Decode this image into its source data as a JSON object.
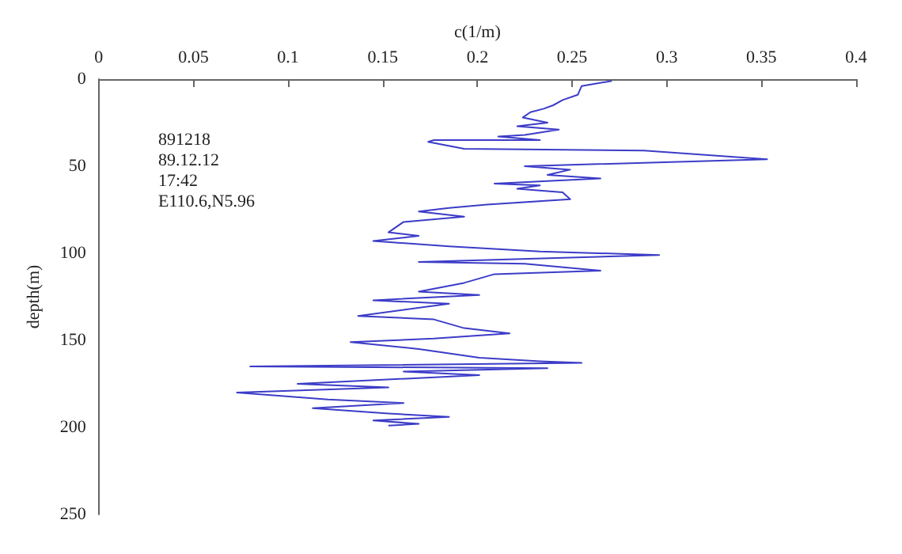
{
  "chart_data": {
    "type": "line",
    "xlabel": "c(1/m)",
    "ylabel": "depth(m)",
    "xlim": [
      0,
      0.4
    ],
    "xticks": [
      0,
      0.05,
      0.1,
      0.15,
      0.2,
      0.25,
      0.3,
      0.35,
      0.4
    ],
    "ylim": [
      250,
      0
    ],
    "yticks": [
      0,
      50,
      100,
      150,
      200,
      250
    ],
    "x": [
      0.271,
      0.255,
      0.253,
      0.245,
      0.24,
      0.235,
      0.228,
      0.224,
      0.237,
      0.221,
      0.243,
      0.225,
      0.211,
      0.233,
      0.177,
      0.174,
      0.193,
      0.288,
      0.353,
      0.225,
      0.249,
      0.237,
      0.265,
      0.209,
      0.233,
      0.221,
      0.245,
      0.249,
      0.205,
      0.185,
      0.169,
      0.193,
      0.161,
      0.153,
      0.169,
      0.145,
      0.185,
      0.233,
      0.296,
      0.169,
      0.225,
      0.265,
      0.209,
      0.193,
      0.169,
      0.201,
      0.145,
      0.185,
      0.137,
      0.177,
      0.193,
      0.217,
      0.177,
      0.133,
      0.169,
      0.201,
      0.233,
      0.255,
      0.08,
      0.237,
      0.161,
      0.201,
      0.105,
      0.153,
      0.073,
      0.121,
      0.161,
      0.113,
      0.153,
      0.185,
      0.145,
      0.169,
      0.153
    ],
    "series": [
      {
        "color": "#3c3cc8",
        "values": [
          1,
          4,
          9,
          12,
          15,
          17,
          19,
          22,
          25,
          27,
          29,
          32,
          33,
          35,
          35,
          36,
          40,
          41,
          46,
          50,
          52,
          55,
          57,
          60,
          61,
          63,
          65,
          69,
          72,
          74,
          76,
          79,
          82,
          88,
          90,
          93,
          96,
          99,
          101,
          105,
          106,
          110,
          112,
          117,
          122,
          124,
          127,
          129,
          136,
          138,
          143,
          146,
          149,
          151,
          155,
          160,
          162,
          163,
          165,
          166,
          168,
          170,
          175,
          177,
          180,
          184,
          186,
          189,
          192,
          194,
          196,
          198,
          199
        ]
      }
    ],
    "annotations": [
      "891218",
      "89.12.12",
      "17:42",
      "E110.6,N5.96"
    ],
    "grid": false,
    "marker": "none",
    "line_style": "solid"
  }
}
